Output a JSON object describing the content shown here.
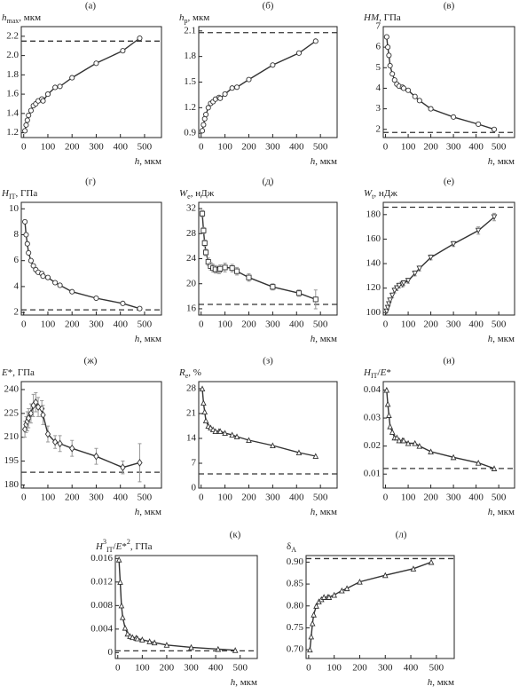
{
  "chart_data": [
    {
      "type": "line",
      "label": "(а)",
      "ylabel": [
        {
          "text": "h",
          "style": "italic"
        },
        {
          "text": "max",
          "style": "sub"
        },
        {
          "text": ", мкм",
          "style": "normal"
        }
      ],
      "xlabel": [
        {
          "text": "h",
          "style": "italic"
        },
        {
          "text": ", мкм",
          "style": "normal"
        }
      ],
      "marker": "circle",
      "color": "#333333",
      "x": [
        5,
        10,
        15,
        20,
        30,
        40,
        50,
        60,
        75,
        80,
        100,
        130,
        150,
        200,
        300,
        410,
        480
      ],
      "values": [
        1.22,
        1.28,
        1.33,
        1.38,
        1.43,
        1.48,
        1.5,
        1.53,
        1.55,
        1.53,
        1.6,
        1.67,
        1.68,
        1.77,
        1.92,
        2.05,
        2.18
      ],
      "reference_line": 2.15,
      "xlim": [
        -10,
        570
      ],
      "xticks": [
        0,
        100,
        200,
        300,
        400,
        500
      ],
      "ylim": [
        1.15,
        2.3
      ],
      "yticks": [
        1.2,
        1.4,
        1.6,
        1.8,
        {
          "value": 2,
          "label": "2.0"
        },
        2.2
      ]
    },
    {
      "type": "line",
      "label": "(б)",
      "ylabel": [
        {
          "text": "h",
          "style": "italic"
        },
        {
          "text": "p",
          "style": "sub"
        },
        {
          "text": ", мкм",
          "style": "normal"
        }
      ],
      "xlabel": [
        {
          "text": "h",
          "style": "italic"
        },
        {
          "text": ", мкм",
          "style": "normal"
        }
      ],
      "marker": "circle",
      "color": "#333333",
      "x": [
        5,
        10,
        15,
        20,
        30,
        40,
        50,
        60,
        75,
        80,
        100,
        130,
        150,
        200,
        300,
        410,
        480
      ],
      "values": [
        0.93,
        1.0,
        1.07,
        1.12,
        1.2,
        1.25,
        1.27,
        1.3,
        1.32,
        1.31,
        1.36,
        1.43,
        1.44,
        1.53,
        1.7,
        1.84,
        1.98
      ],
      "reference_line": 2.08,
      "xlim": [
        -10,
        570
      ],
      "xticks": [
        0,
        100,
        200,
        300,
        400,
        500
      ],
      "ylim": [
        0.85,
        2.15
      ],
      "yticks": [
        0.9,
        1.2,
        1.5,
        1.8,
        2.1
      ]
    },
    {
      "type": "line",
      "label": "(в)",
      "ylabel": [
        {
          "text": "HM",
          "style": "italic"
        },
        {
          "text": ", ГПа",
          "style": "normal"
        }
      ],
      "xlabel": [
        {
          "text": "h",
          "style": "italic"
        },
        {
          "text": ", мкм",
          "style": "normal"
        }
      ],
      "marker": "circle",
      "color": "#333333",
      "x": [
        5,
        10,
        15,
        20,
        30,
        40,
        50,
        60,
        75,
        80,
        100,
        130,
        150,
        200,
        300,
        410,
        480
      ],
      "values": [
        6.5,
        6.0,
        5.6,
        5.1,
        4.7,
        4.4,
        4.2,
        4.1,
        4.05,
        4.0,
        3.9,
        3.6,
        3.4,
        3.0,
        2.6,
        2.25,
        2.0
      ],
      "reference_line": 1.85,
      "xlim": [
        -10,
        570
      ],
      "xticks": [
        0,
        100,
        200,
        300,
        400,
        500
      ],
      "ylim": [
        1.6,
        7
      ],
      "yticks": [
        2,
        3,
        4,
        5,
        6,
        7
      ]
    },
    {
      "type": "line",
      "label": "(г)",
      "ylabel": [
        {
          "text": "H",
          "style": "italic"
        },
        {
          "text": "IT",
          "style": "sub"
        },
        {
          "text": ", ГПа",
          "style": "normal"
        }
      ],
      "xlabel": [
        {
          "text": "h",
          "style": "italic"
        },
        {
          "text": ", мкм",
          "style": "normal"
        }
      ],
      "marker": "circle",
      "color": "#333333",
      "x": [
        5,
        10,
        15,
        20,
        30,
        40,
        50,
        60,
        75,
        80,
        100,
        130,
        150,
        200,
        300,
        410,
        480
      ],
      "values": [
        9,
        8,
        7.3,
        6.6,
        6,
        5.6,
        5.3,
        5.1,
        5.0,
        4.8,
        4.7,
        4.3,
        4.1,
        3.6,
        3.1,
        2.7,
        2.3
      ],
      "reference_line": 2.2,
      "xlim": [
        -10,
        570
      ],
      "xticks": [
        0,
        100,
        200,
        300,
        400,
        500
      ],
      "ylim": [
        1.8,
        10.5
      ],
      "yticks": [
        2,
        4,
        6,
        8,
        10
      ]
    },
    {
      "type": "line",
      "label": "(д)",
      "ylabel": [
        {
          "text": "W",
          "style": "italic"
        },
        {
          "text": "e",
          "style": "sub"
        },
        {
          "text": ", нДж",
          "style": "normal"
        }
      ],
      "xlabel": [
        {
          "text": "h",
          "style": "italic"
        },
        {
          "text": ", мкм",
          "style": "normal"
        }
      ],
      "marker": "square",
      "color": "#333333",
      "x": [
        5,
        10,
        15,
        20,
        30,
        40,
        50,
        60,
        75,
        80,
        100,
        130,
        150,
        200,
        300,
        410,
        480
      ],
      "values": [
        31.2,
        28.5,
        26.5,
        25,
        23.5,
        22.8,
        22.5,
        22.3,
        22.2,
        22.4,
        22.6,
        22.5,
        22,
        21,
        19.5,
        18.5,
        17.5
      ],
      "errors": [
        0.5,
        0.5,
        0.5,
        0.5,
        0.6,
        0.6,
        0.6,
        0.6,
        0.6,
        0.6,
        0.7,
        0.6,
        0.6,
        0.6,
        0.5,
        0.5,
        1.5
      ],
      "reference_line": 16.7,
      "xlim": [
        -10,
        570
      ],
      "xticks": [
        0,
        100,
        200,
        300,
        400,
        500
      ],
      "ylim": [
        15,
        33
      ],
      "yticks": [
        16,
        20,
        24,
        28,
        32
      ]
    },
    {
      "type": "line",
      "label": "(е)",
      "ylabel": [
        {
          "text": "W",
          "style": "italic"
        },
        {
          "text": "t",
          "style": "sub"
        },
        {
          "text": ", нДж",
          "style": "normal"
        }
      ],
      "xlabel": [
        {
          "text": "h",
          "style": "italic"
        },
        {
          "text": ", мкм",
          "style": "normal"
        }
      ],
      "marker": "triangle-down",
      "color": "#333333",
      "x": [
        5,
        10,
        15,
        20,
        30,
        40,
        50,
        60,
        75,
        80,
        100,
        130,
        150,
        200,
        300,
        410,
        480
      ],
      "values": [
        101,
        104,
        107,
        110,
        114,
        118,
        120,
        122,
        123,
        124,
        126,
        132,
        136,
        145,
        156,
        167,
        178
      ],
      "errors": [
        1,
        1,
        1,
        1,
        2,
        2,
        2,
        2,
        2,
        2,
        2,
        2,
        2,
        2,
        2,
        3,
        3
      ],
      "reference_line": 186,
      "xlim": [
        -10,
        570
      ],
      "xticks": [
        0,
        100,
        200,
        300,
        400,
        500
      ],
      "ylim": [
        98,
        190
      ],
      "yticks": [
        100,
        120,
        140,
        160,
        180
      ]
    },
    {
      "type": "line",
      "label": "(ж)",
      "ylabel": [
        {
          "text": "E",
          "style": "italic"
        },
        {
          "text": "*, ГПа",
          "style": "normal"
        }
      ],
      "xlabel": [
        {
          "text": "h",
          "style": "italic"
        },
        {
          "text": ", мкм",
          "style": "normal"
        }
      ],
      "marker": "diamond",
      "color": "#333333",
      "x": [
        5,
        10,
        15,
        20,
        30,
        40,
        50,
        60,
        75,
        80,
        100,
        130,
        150,
        200,
        300,
        410,
        480
      ],
      "values": [
        215,
        218,
        220,
        222,
        225,
        230,
        232,
        229,
        228,
        224,
        212,
        207,
        206,
        203,
        198,
        191,
        194
      ],
      "errors": [
        5,
        5,
        6,
        6,
        6,
        7,
        6,
        6,
        5,
        6,
        5,
        4,
        5,
        5,
        5,
        4,
        12
      ],
      "reference_line": 188,
      "xlim": [
        -10,
        570
      ],
      "xticks": [
        0,
        100,
        200,
        300,
        400,
        500
      ],
      "ylim": [
        178,
        245
      ],
      "yticks": [
        180,
        195,
        210,
        225,
        240
      ]
    },
    {
      "type": "line",
      "label": "(з)",
      "ylabel": [
        {
          "text": "R",
          "style": "italic"
        },
        {
          "text": "e",
          "style": "sub"
        },
        {
          "text": ", %",
          "style": "normal"
        }
      ],
      "xlabel": [
        {
          "text": "h",
          "style": "italic"
        },
        {
          "text": ", мкм",
          "style": "normal"
        }
      ],
      "marker": "triangle",
      "color": "#333333",
      "x": [
        5,
        10,
        15,
        20,
        30,
        40,
        50,
        60,
        75,
        80,
        100,
        130,
        150,
        200,
        300,
        410,
        480
      ],
      "values": [
        28,
        24,
        21.5,
        19,
        17.5,
        17,
        16.5,
        16,
        16,
        16,
        15.5,
        15,
        14.5,
        13.5,
        12,
        10,
        9
      ],
      "reference_line": 4,
      "xlim": [
        -10,
        570
      ],
      "xticks": [
        0,
        100,
        200,
        300,
        400,
        500
      ],
      "ylim": [
        0,
        30
      ],
      "yticks": [
        0,
        7,
        14,
        21,
        28
      ]
    },
    {
      "type": "line",
      "label": "(и)",
      "ylabel": [
        {
          "text": "H",
          "style": "italic"
        },
        {
          "text": "IT",
          "style": "sub"
        },
        {
          "text": "/",
          "style": "normal"
        },
        {
          "text": "E",
          "style": "italic"
        },
        {
          "text": "*",
          "style": "normal"
        }
      ],
      "xlabel": [
        {
          "text": "h",
          "style": "italic"
        },
        {
          "text": ", мкм",
          "style": "normal"
        }
      ],
      "marker": "triangle",
      "color": "#333333",
      "x": [
        5,
        10,
        15,
        20,
        30,
        40,
        50,
        60,
        75,
        80,
        100,
        130,
        150,
        200,
        300,
        410,
        480
      ],
      "values": [
        0.04,
        0.035,
        0.031,
        0.027,
        0.025,
        0.023,
        0.023,
        0.022,
        0.022,
        0.022,
        0.021,
        0.021,
        0.02,
        0.018,
        0.016,
        0.014,
        0.012
      ],
      "reference_line": 0.012,
      "xlim": [
        -10,
        570
      ],
      "xticks": [
        0,
        100,
        200,
        300,
        400,
        500
      ],
      "ylim": [
        0.005,
        0.043
      ],
      "yticks": [
        0.01,
        0.02,
        0.03,
        0.04
      ]
    },
    {
      "type": "line",
      "label": "(к)",
      "ylabel": [
        {
          "text": "H",
          "style": "italic"
        },
        {
          "text": "3",
          "style": "sup"
        },
        {
          "text": "IT",
          "style": "sub"
        },
        {
          "text": "/",
          "style": "normal"
        },
        {
          "text": "E",
          "style": "italic"
        },
        {
          "text": "*",
          "style": "normal"
        },
        {
          "text": "2",
          "style": "sup"
        },
        {
          "text": ", ГПа",
          "style": "normal"
        }
      ],
      "xlabel": [
        {
          "text": "h",
          "style": "italic"
        },
        {
          "text": ", мкм",
          "style": "normal"
        }
      ],
      "marker": "triangle",
      "color": "#333333",
      "x": [
        5,
        10,
        15,
        20,
        30,
        40,
        50,
        60,
        75,
        80,
        100,
        130,
        150,
        200,
        300,
        410,
        480
      ],
      "values": [
        0.0158,
        0.012,
        0.008,
        0.006,
        0.0042,
        0.0032,
        0.0028,
        0.0026,
        0.0025,
        0.0024,
        0.0022,
        0.0019,
        0.0017,
        0.0013,
        0.0009,
        0.0006,
        0.0004
      ],
      "reference_line": 0.0003,
      "xlim": [
        -10,
        570
      ],
      "xticks": [
        0,
        100,
        200,
        300,
        400,
        500
      ],
      "ylim": [
        -0.001,
        0.0165
      ],
      "yticks": [
        0,
        0.004,
        0.008,
        0.012,
        0.016
      ]
    },
    {
      "type": "line",
      "label": "(л)",
      "ylabel": [
        {
          "text": "δ",
          "style": "normal"
        },
        {
          "text": "A",
          "style": "sub"
        }
      ],
      "xlabel": [
        {
          "text": "h",
          "style": "italic"
        },
        {
          "text": ", мкм",
          "style": "normal"
        }
      ],
      "marker": "triangle",
      "color": "#333333",
      "x": [
        5,
        10,
        15,
        20,
        30,
        40,
        50,
        60,
        75,
        80,
        100,
        130,
        150,
        200,
        300,
        410,
        480
      ],
      "values": [
        0.7,
        0.73,
        0.76,
        0.78,
        0.8,
        0.81,
        0.815,
        0.82,
        0.82,
        0.82,
        0.825,
        0.835,
        0.84,
        0.855,
        0.87,
        0.885,
        0.9
      ],
      "reference_line": 0.908,
      "xlim": [
        -10,
        570
      ],
      "xticks": [
        0,
        100,
        200,
        300,
        400,
        500
      ],
      "ylim": [
        0.68,
        0.915
      ],
      "yticks": [
        {
          "value": 0.7,
          "label": "0.70"
        },
        0.75,
        {
          "value": 0.8,
          "label": "0.80"
        },
        0.85,
        {
          "value": 0.9,
          "label": "0.90"
        }
      ]
    }
  ]
}
